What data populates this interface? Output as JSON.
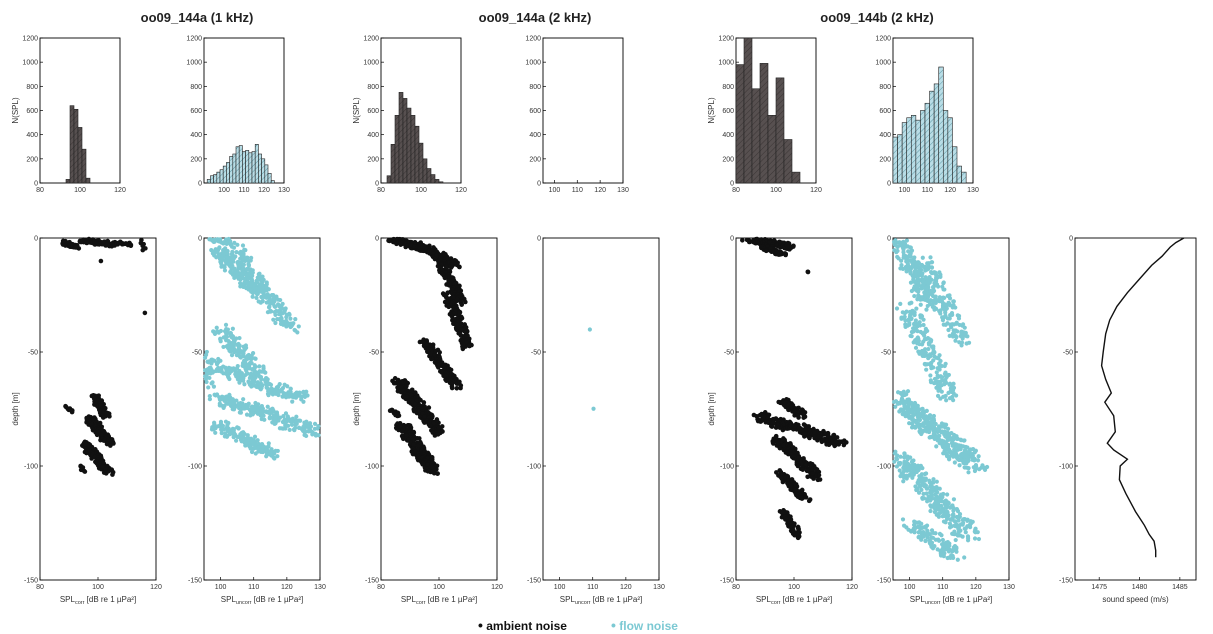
{
  "colors": {
    "ambient": "#111111",
    "ambient_hist": "#575050",
    "flow": "#7cc9d3",
    "flow_hist": "#b9dde6",
    "axis": "#000000"
  },
  "legend": {
    "ambient": "ambient noise",
    "flow": "flow noise"
  },
  "groups": [
    {
      "title": "oo09_144a (1 kHz)"
    },
    {
      "title": "oo09_144a (2 kHz)"
    },
    {
      "title": "oo09_144b (2 kHz)"
    }
  ],
  "chart_data": [
    {
      "type": "bar",
      "panel": "hist-1",
      "ylabel": "N(SPL)",
      "xlim": [
        80,
        120
      ],
      "ylim": [
        0,
        1200
      ],
      "xticks": [
        "80",
        "100",
        "120"
      ],
      "yticks": [
        "0",
        "200",
        "400",
        "600",
        "800",
        "1000",
        "1200"
      ],
      "bin_width": 2,
      "series": [
        {
          "x": [
            94,
            96,
            98,
            100,
            102,
            104
          ],
          "values": [
            30,
            640,
            610,
            460,
            280,
            40
          ]
        }
      ]
    },
    {
      "type": "bar",
      "panel": "hist-2",
      "ylabel": "",
      "xlim": [
        90,
        130
      ],
      "ylim": [
        0,
        1200
      ],
      "xticks": [
        "100",
        "110",
        "120",
        "130"
      ],
      "yticks": [
        "0",
        "200",
        "400",
        "600",
        "800",
        "1000",
        "1200"
      ],
      "bin_width": 1.6,
      "series": [
        {
          "x": [
            92.4,
            94,
            95.6,
            97.2,
            98.8,
            100.4,
            102,
            103.6,
            105.2,
            106.8,
            108.4,
            110,
            111.6,
            113.2,
            114.8,
            116.4,
            118,
            119.6,
            121.2,
            122.8,
            124.4
          ],
          "values": [
            30,
            60,
            70,
            90,
            110,
            140,
            170,
            220,
            240,
            300,
            310,
            260,
            270,
            250,
            260,
            320,
            240,
            200,
            150,
            80,
            20
          ]
        }
      ]
    },
    {
      "type": "bar",
      "panel": "hist-3",
      "ylabel": "N(SPL)",
      "xlim": [
        80,
        120
      ],
      "ylim": [
        0,
        1200
      ],
      "xticks": [
        "80",
        "100",
        "120"
      ],
      "yticks": [
        "0",
        "200",
        "400",
        "600",
        "800",
        "1000",
        "1200"
      ],
      "bin_width": 2,
      "series": [
        {
          "x": [
            84,
            86,
            88,
            90,
            92,
            94,
            96,
            98,
            100,
            102,
            104,
            106,
            108,
            110
          ],
          "values": [
            60,
            320,
            560,
            750,
            700,
            620,
            560,
            470,
            330,
            200,
            120,
            70,
            30,
            10
          ]
        }
      ]
    },
    {
      "type": "bar",
      "panel": "hist-4",
      "ylabel": "",
      "xlim": [
        95,
        130
      ],
      "ylim": [
        0,
        1200
      ],
      "xticks": [
        "100",
        "110",
        "120",
        "130"
      ],
      "yticks": [
        "0",
        "200",
        "400",
        "600",
        "800",
        "1000",
        "1200"
      ],
      "bin_width": 2,
      "series": [
        {
          "x": [],
          "values": []
        }
      ]
    },
    {
      "type": "bar",
      "panel": "hist-5",
      "ylabel": "N(SPL)",
      "xlim": [
        80,
        120
      ],
      "ylim": [
        0,
        1200
      ],
      "xticks": [
        "80",
        "100",
        "120"
      ],
      "yticks": [
        "0",
        "200",
        "400",
        "600",
        "800",
        "1000",
        "1200"
      ],
      "bin_width": 4,
      "series": [
        {
          "x": [
            82,
            86,
            90,
            94,
            98,
            102,
            106,
            110
          ],
          "values": [
            980,
            1200,
            780,
            990,
            560,
            870,
            360,
            90
          ]
        }
      ]
    },
    {
      "type": "bar",
      "panel": "hist-6",
      "ylabel": "",
      "xlim": [
        95,
        130
      ],
      "ylim": [
        0,
        1200
      ],
      "xticks": [
        "100",
        "110",
        "120",
        "130"
      ],
      "yticks": [
        "0",
        "200",
        "400",
        "600",
        "800",
        "1000",
        "1200"
      ],
      "bin_width": 2,
      "series": [
        {
          "x": [
            96,
            98,
            100,
            102,
            104,
            106,
            108,
            110,
            112,
            114,
            116,
            118,
            120,
            122,
            124,
            126
          ],
          "values": [
            380,
            400,
            500,
            540,
            560,
            520,
            600,
            660,
            760,
            820,
            960,
            600,
            540,
            300,
            140,
            90
          ]
        }
      ]
    },
    {
      "type": "scatter",
      "panel": "depth-1",
      "ylabel": "depth [m]",
      "xlabel": "SPL",
      "xlabel_sub": "corr",
      "xlabel_tail": " [dB re 1 µPa²]",
      "xlim": [
        80,
        120
      ],
      "ylim": [
        -150,
        0
      ],
      "xticks": [
        "80",
        "100",
        "120"
      ],
      "yticks": [
        "-150",
        "-100",
        "-50",
        "0"
      ],
      "color": "ambient",
      "series": [
        {
          "x": [
            88,
            93
          ],
          "y": [
            -2,
            -4
          ],
          "spread": 0.9,
          "count": 70
        },
        {
          "x": [
            94,
            107
          ],
          "y": [
            -1,
            -3
          ],
          "spread": 1.2,
          "count": 90
        },
        {
          "x": [
            107,
            112
          ],
          "y": [
            -2,
            -3
          ],
          "spread": 0.8,
          "count": 12
        },
        {
          "x": [
            115,
            116
          ],
          "y": [
            -1,
            -5
          ],
          "spread": 0.6,
          "count": 6
        },
        {
          "x": [
            101,
            101
          ],
          "y": [
            -10,
            -10
          ],
          "spread": 0.2,
          "count": 1
        },
        {
          "x": [
            116,
            116
          ],
          "y": [
            -33,
            -33
          ],
          "spread": 0.2,
          "count": 1
        },
        {
          "x": [
            99,
            103
          ],
          "y": [
            -70,
            -78
          ],
          "spread": 1.4,
          "count": 70
        },
        {
          "x": [
            97,
            104
          ],
          "y": [
            -79,
            -90
          ],
          "spread": 1.6,
          "count": 110
        },
        {
          "x": [
            95,
            104
          ],
          "y": [
            -90,
            -103
          ],
          "spread": 1.6,
          "count": 110
        },
        {
          "x": [
            89,
            91
          ],
          "y": [
            -74,
            -76
          ],
          "spread": 0.6,
          "count": 8
        },
        {
          "x": [
            94,
            95
          ],
          "y": [
            -100,
            -102
          ],
          "spread": 0.6,
          "count": 8
        }
      ]
    },
    {
      "type": "scatter",
      "panel": "depth-2",
      "ylabel": "",
      "xlabel": "SPL",
      "xlabel_sub": "uncorr",
      "xlabel_tail": " [dB re 1 µPa²]",
      "xlim": [
        95,
        130
      ],
      "ylim": [
        -150,
        0
      ],
      "xticks": [
        "100",
        "110",
        "120",
        "130"
      ],
      "yticks": [
        "-150",
        "-100",
        "-50",
        "0"
      ],
      "color": "flow",
      "series": [
        {
          "x": [
            96,
            104
          ],
          "y": [
            0,
            -2
          ],
          "spread": 1.2,
          "count": 60
        },
        {
          "x": [
            99,
            112
          ],
          "y": [
            -5,
            -25
          ],
          "spread": 2.0,
          "count": 170
        },
        {
          "x": [
            104,
            121
          ],
          "y": [
            -5,
            -40
          ],
          "spread": 2.2,
          "count": 200
        },
        {
          "x": [
            100,
            112
          ],
          "y": [
            -40,
            -60
          ],
          "spread": 2.2,
          "count": 130
        },
        {
          "x": [
            96,
            124
          ],
          "y": [
            -55,
            -70
          ],
          "spread": 2.6,
          "count": 200
        },
        {
          "x": [
            99,
            129
          ],
          "y": [
            -70,
            -85
          ],
          "spread": 2.6,
          "count": 220
        },
        {
          "x": [
            99,
            116
          ],
          "y": [
            -82,
            -95
          ],
          "spread": 2.2,
          "count": 140
        },
        {
          "x": [
            95,
            97
          ],
          "y": [
            -50,
            -65
          ],
          "spread": 1.0,
          "count": 30
        }
      ]
    },
    {
      "type": "scatter",
      "panel": "depth-3",
      "ylabel": "depth [m]",
      "xlabel": "SPL",
      "xlabel_sub": "corr",
      "xlabel_tail": " [dB re 1 µPa²]",
      "xlim": [
        80,
        120
      ],
      "ylim": [
        -150,
        0
      ],
      "xticks": [
        "80",
        "100",
        "120"
      ],
      "yticks": [
        "-150",
        "-100",
        "-50",
        "0"
      ],
      "color": "ambient",
      "series": [
        {
          "x": [
            83,
            95
          ],
          "y": [
            0,
            -5
          ],
          "spread": 1.4,
          "count": 120
        },
        {
          "x": [
            93,
            106
          ],
          "y": [
            -3,
            -12
          ],
          "spread": 1.8,
          "count": 140
        },
        {
          "x": [
            100,
            108
          ],
          "y": [
            -10,
            -28
          ],
          "spread": 1.8,
          "count": 140
        },
        {
          "x": [
            103,
            110
          ],
          "y": [
            -25,
            -48
          ],
          "spread": 1.8,
          "count": 150
        },
        {
          "x": [
            95,
            106
          ],
          "y": [
            -45,
            -65
          ],
          "spread": 1.8,
          "count": 140
        },
        {
          "x": [
            86,
            100
          ],
          "y": [
            -63,
            -85
          ],
          "spread": 2.2,
          "count": 220
        },
        {
          "x": [
            87,
            98
          ],
          "y": [
            -82,
            -102
          ],
          "spread": 2.2,
          "count": 220
        },
        {
          "x": [
            83,
            86
          ],
          "y": [
            -75,
            -78
          ],
          "spread": 0.8,
          "count": 12
        }
      ]
    },
    {
      "type": "scatter",
      "panel": "depth-4",
      "ylabel": "",
      "xlabel": "SPL",
      "xlabel_sub": "uncorr",
      "xlabel_tail": " [dB re 1 µPa²]",
      "xlim": [
        95,
        130
      ],
      "ylim": [
        -150,
        0
      ],
      "xticks": [
        "100",
        "110",
        "120",
        "130"
      ],
      "yticks": [
        "-150",
        "-100",
        "-50",
        "0"
      ],
      "color": "flow",
      "series": [
        {
          "x": [
            109,
            109
          ],
          "y": [
            -40,
            -40
          ],
          "spread": 0.2,
          "count": 1
        },
        {
          "x": [
            110,
            110
          ],
          "y": [
            -75,
            -75
          ],
          "spread": 0.2,
          "count": 1
        }
      ]
    },
    {
      "type": "scatter",
      "panel": "depth-5",
      "ylabel": "depth [m]",
      "xlabel": "SPL",
      "xlabel_sub": "corr",
      "xlabel_tail": " [dB re 1 µPa²]",
      "xlim": [
        80,
        120
      ],
      "ylim": [
        -150,
        0
      ],
      "xticks": [
        "80",
        "100",
        "120"
      ],
      "yticks": [
        "-150",
        "-100",
        "-50",
        "0"
      ],
      "color": "ambient",
      "series": [
        {
          "x": [
            83,
            99
          ],
          "y": [
            0,
            -4
          ],
          "spread": 1.6,
          "count": 170
        },
        {
          "x": [
            89,
            97
          ],
          "y": [
            -4,
            -7
          ],
          "spread": 1.2,
          "count": 50
        },
        {
          "x": [
            105,
            105
          ],
          "y": [
            -15,
            -15
          ],
          "spread": 0.3,
          "count": 2
        },
        {
          "x": [
            96,
            103
          ],
          "y": [
            -71,
            -78
          ],
          "spread": 1.6,
          "count": 70
        },
        {
          "x": [
            88,
            116
          ],
          "y": [
            -78,
            -90
          ],
          "spread": 2.4,
          "count": 230
        },
        {
          "x": [
            94,
            108
          ],
          "y": [
            -88,
            -105
          ],
          "spread": 2.0,
          "count": 170
        },
        {
          "x": [
            95,
            104
          ],
          "y": [
            -103,
            -115
          ],
          "spread": 1.6,
          "count": 90
        },
        {
          "x": [
            96,
            102
          ],
          "y": [
            -120,
            -131
          ],
          "spread": 1.4,
          "count": 60
        }
      ]
    },
    {
      "type": "scatter",
      "panel": "depth-6",
      "ylabel": "",
      "xlabel": "SPL",
      "xlabel_sub": "uncorr",
      "xlabel_tail": " [dB re 1 µPa²]",
      "xlim": [
        95,
        130
      ],
      "ylim": [
        -150,
        0
      ],
      "xticks": [
        "100",
        "110",
        "120",
        "130"
      ],
      "yticks": [
        "-150",
        "-100",
        "-50",
        "0"
      ],
      "color": "flow",
      "series": [
        {
          "x": [
            96,
            106
          ],
          "y": [
            0,
            -30
          ],
          "spread": 2.2,
          "count": 170
        },
        {
          "x": [
            104,
            116
          ],
          "y": [
            -10,
            -45
          ],
          "spread": 2.2,
          "count": 170
        },
        {
          "x": [
            99,
            112
          ],
          "y": [
            -30,
            -70
          ],
          "spread": 2.4,
          "count": 190
        },
        {
          "x": [
            96,
            120
          ],
          "y": [
            -70,
            -100
          ],
          "spread": 3.0,
          "count": 360
        },
        {
          "x": [
            96,
            118
          ],
          "y": [
            -95,
            -130
          ],
          "spread": 3.0,
          "count": 300
        },
        {
          "x": [
            100,
            114
          ],
          "y": [
            -125,
            -140
          ],
          "spread": 2.4,
          "count": 110
        }
      ]
    },
    {
      "type": "line",
      "panel": "sound-speed",
      "ylabel": "",
      "xlabel": "sound speed (m/s)",
      "xlim": [
        1472,
        1487
      ],
      "ylim": [
        -150,
        0
      ],
      "xticks": [
        "1475",
        "1480",
        "1485"
      ],
      "yticks": [
        "-150",
        "-100",
        "-50",
        "0"
      ],
      "series": [
        {
          "x": [
            1485.5,
            1484.5,
            1483.8,
            1482.8,
            1481.5,
            1480.0,
            1478.5,
            1477.2,
            1476.3,
            1475.8,
            1475.5,
            1475.3,
            1475.8,
            1476.5,
            1475.7,
            1476.8,
            1477.0,
            1476.0,
            1476.8,
            1478.5,
            1477.6,
            1477.5,
            1478.3,
            1479.5,
            1480.6,
            1481.2,
            1481.8,
            1482.0,
            1482.0
          ],
          "y": [
            0,
            -2,
            -4,
            -8,
            -12,
            -18,
            -24,
            -30,
            -36,
            -42,
            -50,
            -56,
            -62,
            -68,
            -72,
            -78,
            -85,
            -90,
            -93,
            -97,
            -100,
            -106,
            -112,
            -120,
            -126,
            -130,
            -133,
            -137,
            -140
          ]
        }
      ]
    }
  ]
}
